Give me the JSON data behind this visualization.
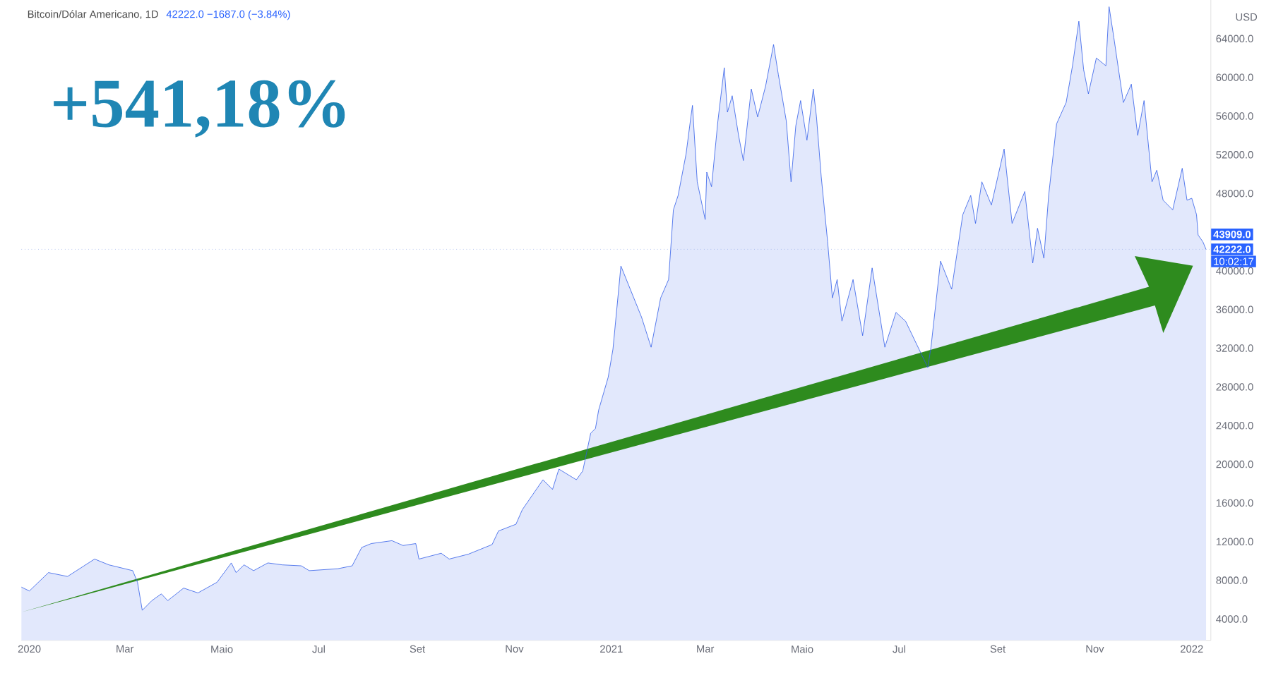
{
  "chart_data": {
    "type": "area",
    "title": "Bitcoin/Dólar Americano, 1D",
    "subtitle": "42222.0 −1687.0 (−3.84%)",
    "ylabel": "USD",
    "annotations": [
      "+541,18%",
      "10:02:17",
      "43909.0"
    ],
    "xlim": [
      "2019-12-27",
      "2022-01-13"
    ],
    "ylim": [
      1800,
      68000
    ],
    "xticks": [
      {
        "value": "2020-01-01",
        "label": "2020"
      },
      {
        "value": "2020-03-01",
        "label": "Mar"
      },
      {
        "value": "2020-05-01",
        "label": "Maio"
      },
      {
        "value": "2020-07-01",
        "label": "Jul"
      },
      {
        "value": "2020-09-01",
        "label": "Set"
      },
      {
        "value": "2020-11-01",
        "label": "Nov"
      },
      {
        "value": "2021-01-01",
        "label": "2021"
      },
      {
        "value": "2021-03-01",
        "label": "Mar"
      },
      {
        "value": "2021-05-01",
        "label": "Maio"
      },
      {
        "value": "2021-07-01",
        "label": "Jul"
      },
      {
        "value": "2021-09-01",
        "label": "Set"
      },
      {
        "value": "2021-11-01",
        "label": "Nov"
      },
      {
        "value": "2022-01-01",
        "label": "2022"
      }
    ],
    "yticks": [
      {
        "value": 4000,
        "label": "4000.0"
      },
      {
        "value": 8000,
        "label": "8000.0"
      },
      {
        "value": 12000,
        "label": "12000.0"
      },
      {
        "value": 16000,
        "label": "16000.0"
      },
      {
        "value": 20000,
        "label": "20000.0"
      },
      {
        "value": 24000,
        "label": "24000.0"
      },
      {
        "value": 28000,
        "label": "28000.0"
      },
      {
        "value": 32000,
        "label": "32000.0"
      },
      {
        "value": 36000,
        "label": "36000.0"
      },
      {
        "value": 40000,
        "label": "40000.0"
      },
      {
        "value": 48000,
        "label": "48000.0"
      },
      {
        "value": 52000,
        "label": "52000.0"
      },
      {
        "value": 56000,
        "label": "56000.0"
      },
      {
        "value": 60000,
        "label": "60000.0"
      },
      {
        "value": 64000,
        "label": "64000.0"
      }
    ],
    "ref_lines": [
      {
        "axis": "y",
        "value": 42222,
        "label": "42222.0",
        "color": "#8fa8e8",
        "line_style": "dotted"
      }
    ],
    "series": [
      {
        "color": "#2f5be8",
        "x": [
          "2019-12-27",
          "2020-01-01",
          "2020-01-13",
          "2020-01-25",
          "2020-02-11",
          "2020-02-20",
          "2020-03-06",
          "2020-03-09",
          "2020-03-12",
          "2020-03-18",
          "2020-03-24",
          "2020-03-28",
          "2020-04-07",
          "2020-04-16",
          "2020-04-28",
          "2020-05-07",
          "2020-05-10",
          "2020-05-15",
          "2020-05-21",
          "2020-05-30",
          "2020-06-08",
          "2020-06-20",
          "2020-06-25",
          "2020-07-13",
          "2020-07-22",
          "2020-07-28",
          "2020-08-03",
          "2020-08-16",
          "2020-08-23",
          "2020-08-31",
          "2020-09-02",
          "2020-09-16",
          "2020-09-21",
          "2020-10-03",
          "2020-10-18",
          "2020-10-22",
          "2020-11-02",
          "2020-11-06",
          "2020-11-19",
          "2020-11-25",
          "2020-11-29",
          "2020-12-10",
          "2020-12-14",
          "2020-12-19",
          "2020-12-22",
          "2020-12-24",
          "2020-12-30",
          "2021-01-02",
          "2021-01-07",
          "2021-01-20",
          "2021-01-26",
          "2021-02-01",
          "2021-02-06",
          "2021-02-09",
          "2021-02-12",
          "2021-02-17",
          "2021-02-20",
          "2021-02-21",
          "2021-02-24",
          "2021-03-01",
          "2021-03-02",
          "2021-03-05",
          "2021-03-09",
          "2021-03-13",
          "2021-03-15",
          "2021-03-18",
          "2021-03-22",
          "2021-03-25",
          "2021-03-30",
          "2021-04-03",
          "2021-04-08",
          "2021-04-13",
          "2021-04-16",
          "2021-04-21",
          "2021-04-24",
          "2021-04-27",
          "2021-04-30",
          "2021-05-04",
          "2021-05-08",
          "2021-05-10",
          "2021-05-13",
          "2021-05-17",
          "2021-05-20",
          "2021-05-23",
          "2021-05-26",
          "2021-06-02",
          "2021-06-08",
          "2021-06-14",
          "2021-06-22",
          "2021-06-29",
          "2021-07-05",
          "2021-07-19",
          "2021-07-21",
          "2021-07-27",
          "2021-08-03",
          "2021-08-10",
          "2021-08-15",
          "2021-08-18",
          "2021-08-22",
          "2021-08-28",
          "2021-09-05",
          "2021-09-10",
          "2021-09-18",
          "2021-09-23",
          "2021-09-26",
          "2021-09-30",
          "2021-10-03",
          "2021-10-08",
          "2021-10-14",
          "2021-10-18",
          "2021-10-22",
          "2021-10-25",
          "2021-10-28",
          "2021-11-02",
          "2021-11-08",
          "2021-11-10",
          "2021-11-13",
          "2021-11-19",
          "2021-11-24",
          "2021-11-28",
          "2021-12-02",
          "2021-12-07",
          "2021-12-10",
          "2021-12-14",
          "2021-12-20",
          "2021-12-26",
          "2021-12-29",
          "2022-01-01",
          "2022-01-04",
          "2022-01-05",
          "2022-01-08",
          "2022-01-10"
        ],
        "values": [
          7300,
          6900,
          8800,
          8400,
          10200,
          9600,
          9000,
          7800,
          4900,
          5900,
          6600,
          5900,
          7200,
          6700,
          7800,
          9800,
          8800,
          9600,
          9000,
          9800,
          9600,
          9500,
          9000,
          9200,
          9500,
          11400,
          11800,
          12100,
          11600,
          11800,
          10200,
          10800,
          10200,
          10700,
          11700,
          13100,
          13800,
          15300,
          18400,
          17400,
          19500,
          18400,
          19300,
          23200,
          23700,
          25600,
          29000,
          31900,
          40500,
          35200,
          32100,
          37200,
          39100,
          46300,
          47800,
          52100,
          55900,
          57100,
          49200,
          45300,
          50200,
          48700,
          55500,
          61000,
          56400,
          58100,
          54000,
          51400,
          58800,
          55900,
          59100,
          63400,
          60300,
          55500,
          49200,
          55000,
          57600,
          53500,
          58800,
          55900,
          49700,
          43000,
          37200,
          39100,
          34800,
          39100,
          33300,
          40300,
          32100,
          35700,
          34800,
          30000,
          32100,
          41000,
          38100,
          45800,
          47800,
          44900,
          49200,
          46800,
          52600,
          44900,
          48200,
          40800,
          44400,
          41300,
          47800,
          55200,
          57400,
          61200,
          65800,
          60800,
          58300,
          62000,
          61200,
          67300,
          64100,
          57400,
          59300,
          54000,
          57600,
          49200,
          50400,
          47300,
          46300,
          50600,
          47300,
          47500,
          45800,
          43700,
          43000,
          42200
        ]
      }
    ]
  }
}
